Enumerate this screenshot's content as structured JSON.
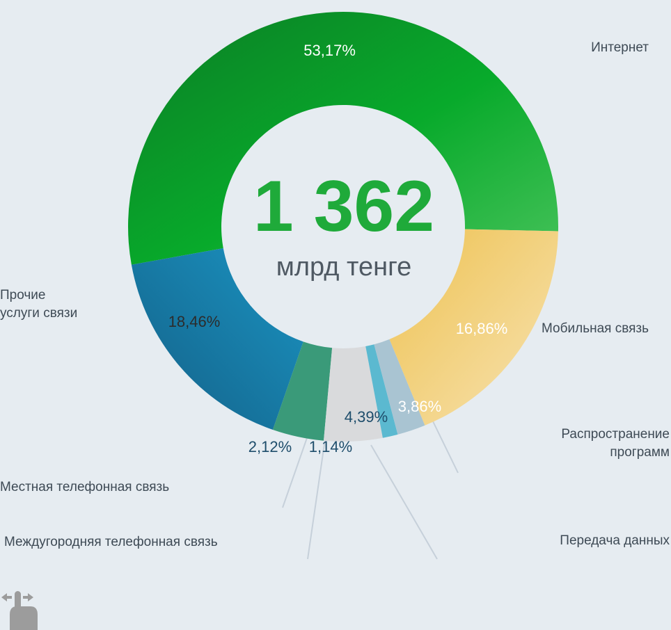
{
  "center": {
    "total": "1 362",
    "unit": "млрд тенге"
  },
  "colors": {
    "background": "#e6ecf1",
    "total": "#1faa3a",
    "leader_line": "#c9d3dc",
    "leader_line_end": "#7f9cbf"
  },
  "icons": {
    "gesture": "swipe-hand-icon"
  },
  "chart_data": {
    "type": "pie",
    "donut": true,
    "slices": [
      {
        "label": "Интернет",
        "value": 53.17,
        "value_label": "53,17%",
        "color": "#15a832",
        "text_color": "#ffffff"
      },
      {
        "label": "Мобильная связь",
        "value": 16.86,
        "value_label": "16,86%",
        "color": "#1a7ea8",
        "text_color": "#ffffff"
      },
      {
        "label": "Распространение программ",
        "value": 3.86,
        "value_label": "3,86%",
        "color": "#3a9a79",
        "text_color": "#ffffff"
      },
      {
        "label": "Передача данных",
        "value": 4.39,
        "value_label": "4,39%",
        "color": "#d9dadc",
        "text_color": "#1e4d6b"
      },
      {
        "label": "Междугородняя телефонная связь",
        "value": 1.14,
        "value_label": "1,14%",
        "color": "#5bb9d0",
        "text_color": "#1e4d6b"
      },
      {
        "label": "Местная телефонная связь",
        "value": 2.12,
        "value_label": "2,12%",
        "color": "#a9c4d2",
        "text_color": "#1e4d6b"
      },
      {
        "label": "Прочие услуги связи",
        "value": 18.46,
        "value_label": "18,46%",
        "color": "#f0cc6a",
        "text_color": "#2c2c2c"
      }
    ]
  }
}
